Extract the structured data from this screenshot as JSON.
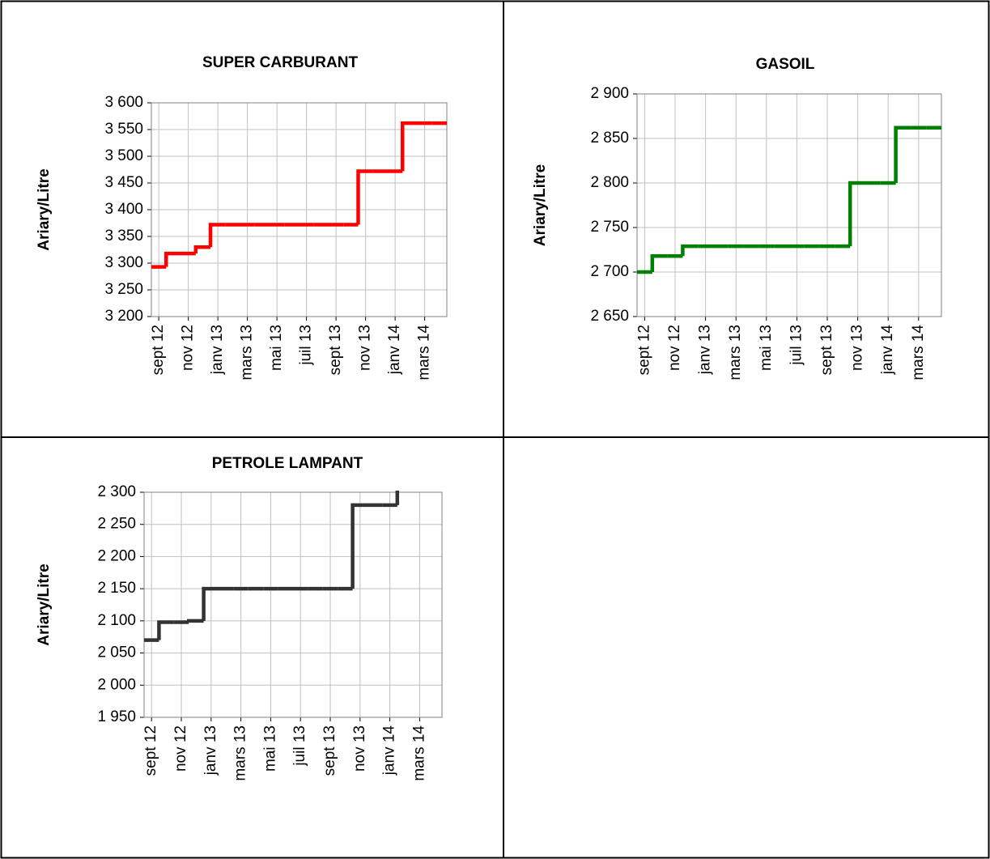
{
  "chart_data": [
    {
      "type": "line",
      "step": true,
      "title": "SUPER CARBURANT",
      "y_label": "Ariary/Litre",
      "color": "#ff0000",
      "grid": true,
      "categories": [
        "sept 12",
        null,
        "nov 12",
        null,
        "janv 13",
        null,
        "mars 13",
        null,
        "mai 13",
        null,
        "juil 13",
        null,
        "sept 13",
        null,
        "nov 13",
        null,
        "janv 14",
        null,
        "mars 14",
        null
      ],
      "values": [
        3293,
        3318,
        3318,
        3330,
        3372,
        3372,
        3372,
        3372,
        3372,
        3372,
        3372,
        3372,
        3372,
        3372,
        3472,
        3472,
        3472,
        3562,
        3562,
        3562
      ],
      "ylim": [
        3200,
        3600
      ],
      "yticks": [
        {
          "value": 3200,
          "label": "3 200"
        },
        {
          "value": 3250,
          "label": "3 250"
        },
        {
          "value": 3300,
          "label": "3 300"
        },
        {
          "value": 3350,
          "label": "3 350"
        },
        {
          "value": 3400,
          "label": "3 400"
        },
        {
          "value": 3450,
          "label": "3 450"
        },
        {
          "value": 3500,
          "label": "3 500"
        },
        {
          "value": 3550,
          "label": "3 550"
        },
        {
          "value": 3600,
          "label": "3 600"
        }
      ]
    },
    {
      "type": "line",
      "step": true,
      "title": "GASOIL",
      "y_label": "Ariary/Litre",
      "color": "#008000",
      "grid": true,
      "categories": [
        "sept 12",
        null,
        "nov 12",
        null,
        "janv 13",
        null,
        "mars 13",
        null,
        "mai 13",
        null,
        "juil 13",
        null,
        "sept 13",
        null,
        "nov 13",
        null,
        "janv 14",
        null,
        "mars 14",
        null
      ],
      "values": [
        2700,
        2718,
        2718,
        2729,
        2729,
        2729,
        2729,
        2729,
        2729,
        2729,
        2729,
        2729,
        2729,
        2729,
        2800,
        2800,
        2800,
        2862,
        2862,
        2862
      ],
      "ylim": [
        2650,
        2900
      ],
      "yticks": [
        {
          "value": 2650,
          "label": "2 650"
        },
        {
          "value": 2700,
          "label": "2 700"
        },
        {
          "value": 2750,
          "label": "2 750"
        },
        {
          "value": 2800,
          "label": "2 800"
        },
        {
          "value": 2850,
          "label": "2 850"
        },
        {
          "value": 2900,
          "label": "2 900"
        }
      ]
    },
    {
      "type": "line",
      "step": true,
      "title": "PETROLE LAMPANT",
      "y_label": "Ariary/Litre",
      "color": "#333333",
      "grid": true,
      "categories": [
        "sept 12",
        null,
        "nov 12",
        null,
        "janv 13",
        null,
        "mars 13",
        null,
        "mai 13",
        null,
        "juil 13",
        null,
        "sept 13",
        null,
        "nov 13",
        null,
        "janv 14",
        null,
        "mars 14",
        null
      ],
      "values": [
        2070,
        2098,
        2098,
        2100,
        2150,
        2150,
        2150,
        2150,
        2150,
        2150,
        2150,
        2150,
        2150,
        2150,
        2280,
        2280,
        2280,
        2310,
        null,
        null
      ],
      "ylim": [
        1950,
        2300
      ],
      "yticks": [
        {
          "value": 1950,
          "label": "1 950"
        },
        {
          "value": 2000,
          "label": "2 000"
        },
        {
          "value": 2050,
          "label": "2 050"
        },
        {
          "value": 2100,
          "label": "2 100"
        },
        {
          "value": 2150,
          "label": "2 150"
        },
        {
          "value": 2200,
          "label": "2 200"
        },
        {
          "value": 2250,
          "label": "2 250"
        },
        {
          "value": 2300,
          "label": "2 300"
        }
      ]
    }
  ]
}
